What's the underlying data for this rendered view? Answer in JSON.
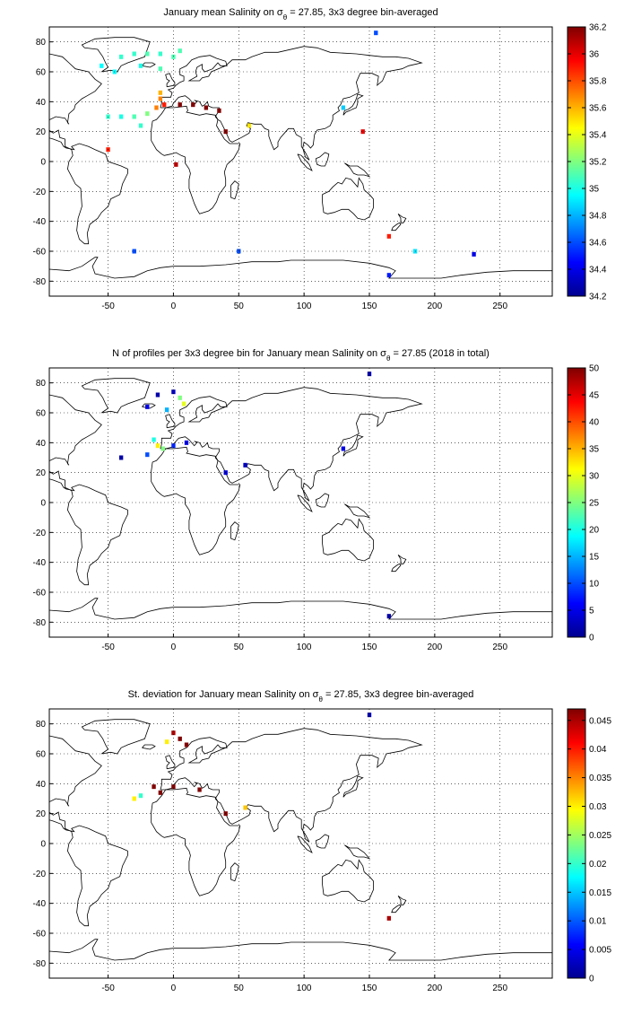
{
  "chart_data": [
    {
      "type": "heatmap",
      "title": "January mean Salinity on σθ = 27.85, 3x3 degree bin-averaged",
      "title_parts": {
        "prefix": "January mean Salinity on σ",
        "subscript": "θ",
        "suffix": " = 27.85, 3x3 degree bin-averaged"
      },
      "xlabel": "",
      "ylabel": "",
      "xlim": [
        -95,
        290
      ],
      "ylim": [
        -90,
        90
      ],
      "xticks": [
        -50,
        0,
        50,
        100,
        150,
        200,
        250
      ],
      "yticks": [
        80,
        60,
        40,
        20,
        0,
        -20,
        -40,
        -60,
        -80
      ],
      "grid": true,
      "colorbar": {
        "min": 34.2,
        "max": 36.2,
        "ticks": [
          36.2,
          36,
          35.8,
          35.6,
          35.4,
          35.2,
          35,
          34.8,
          34.6,
          34.4,
          34.2
        ]
      },
      "cells": [
        {
          "lon": -40,
          "lat": 70,
          "value": 35.05
        },
        {
          "lon": -30,
          "lat": 72,
          "value": 35.05
        },
        {
          "lon": -20,
          "lat": 72,
          "value": 35.1
        },
        {
          "lon": -10,
          "lat": 72,
          "value": 35.05
        },
        {
          "lon": 0,
          "lat": 70,
          "value": 35.1
        },
        {
          "lon": 5,
          "lat": 74,
          "value": 35.1
        },
        {
          "lon": -55,
          "lat": 64,
          "value": 34.95
        },
        {
          "lon": -25,
          "lat": 64,
          "value": 35.0
        },
        {
          "lon": -10,
          "lat": 62,
          "value": 35.1
        },
        {
          "lon": -45,
          "lat": 60,
          "value": 34.95
        },
        {
          "lon": -10,
          "lat": 46,
          "value": 35.6
        },
        {
          "lon": -10,
          "lat": 42,
          "value": 35.7
        },
        {
          "lon": -7,
          "lat": 38,
          "value": 35.9
        },
        {
          "lon": -13,
          "lat": 36,
          "value": 35.7
        },
        {
          "lon": -20,
          "lat": 32,
          "value": 35.2
        },
        {
          "lon": -30,
          "lat": 30,
          "value": 35.1
        },
        {
          "lon": -40,
          "lat": 30,
          "value": 35.0
        },
        {
          "lon": -50,
          "lat": 30,
          "value": 35.05
        },
        {
          "lon": -25,
          "lat": 24,
          "value": 35.05
        },
        {
          "lon": 5,
          "lat": 38,
          "value": 36.2
        },
        {
          "lon": 15,
          "lat": 38,
          "value": 36.2
        },
        {
          "lon": 25,
          "lat": 36,
          "value": 36.2
        },
        {
          "lon": 35,
          "lat": 34,
          "value": 36.2
        },
        {
          "lon": 40,
          "lat": 20,
          "value": 36.2
        },
        {
          "lon": 58,
          "lat": 24,
          "value": 35.5
        },
        {
          "lon": -50,
          "lat": 8,
          "value": 35.9
        },
        {
          "lon": 2,
          "lat": -2,
          "value": 36.1
        },
        {
          "lon": 130,
          "lat": 36,
          "value": 34.85
        },
        {
          "lon": 145,
          "lat": 20,
          "value": 36.0
        },
        {
          "lon": 165,
          "lat": -50,
          "value": 35.9
        },
        {
          "lon": 155,
          "lat": 86,
          "value": 34.6
        },
        {
          "lon": -30,
          "lat": -60,
          "value": 34.6
        },
        {
          "lon": 50,
          "lat": -60,
          "value": 34.6
        },
        {
          "lon": 165,
          "lat": -76,
          "value": 34.5
        },
        {
          "lon": 185,
          "lat": -60,
          "value": 34.9
        },
        {
          "lon": 230,
          "lat": -62,
          "value": 34.4
        }
      ]
    },
    {
      "type": "heatmap",
      "title": "N of profiles per 3x3 degree bin for January mean Salinity on σθ = 27.85 (2018 in total)",
      "title_parts": {
        "prefix": "N of profiles per 3x3 degree bin for January mean Salinity on σ",
        "subscript": "θ",
        "suffix": " = 27.85 (2018 in total)"
      },
      "xlabel": "",
      "ylabel": "",
      "xlim": [
        -95,
        290
      ],
      "ylim": [
        -90,
        90
      ],
      "xticks": [
        -50,
        0,
        50,
        100,
        150,
        200,
        250
      ],
      "yticks": [
        80,
        60,
        40,
        20,
        0,
        -20,
        -40,
        -60,
        -80
      ],
      "grid": true,
      "colorbar": {
        "min": 0,
        "max": 50,
        "ticks": [
          50,
          45,
          40,
          35,
          30,
          25,
          20,
          15,
          10,
          5,
          0
        ]
      },
      "cells": [
        {
          "lon": -12,
          "lat": 72,
          "value": 2
        },
        {
          "lon": 0,
          "lat": 74,
          "value": 3
        },
        {
          "lon": 5,
          "lat": 70,
          "value": 25
        },
        {
          "lon": 8,
          "lat": 66,
          "value": 30
        },
        {
          "lon": -5,
          "lat": 62,
          "value": 15
        },
        {
          "lon": -20,
          "lat": 64,
          "value": 5
        },
        {
          "lon": -15,
          "lat": 42,
          "value": 20
        },
        {
          "lon": -12,
          "lat": 38,
          "value": 32
        },
        {
          "lon": -8,
          "lat": 36,
          "value": 25
        },
        {
          "lon": -20,
          "lat": 32,
          "value": 10
        },
        {
          "lon": -40,
          "lat": 30,
          "value": 2
        },
        {
          "lon": 0,
          "lat": 38,
          "value": 8
        },
        {
          "lon": 10,
          "lat": 40,
          "value": 5
        },
        {
          "lon": 40,
          "lat": 20,
          "value": 4
        },
        {
          "lon": 55,
          "lat": 25,
          "value": 3
        },
        {
          "lon": 130,
          "lat": 36,
          "value": 5
        },
        {
          "lon": 150,
          "lat": 86,
          "value": 2
        },
        {
          "lon": 165,
          "lat": -76,
          "value": 2
        }
      ]
    },
    {
      "type": "heatmap",
      "title": "St. deviation for January mean Salinity on σθ = 27.85, 3x3 degree bin-averaged",
      "title_parts": {
        "prefix": "St. deviation for January mean Salinity on σ",
        "subscript": "θ",
        "suffix": " = 27.85, 3x3 degree bin-averaged"
      },
      "xlabel": "",
      "ylabel": "",
      "xlim": [
        -95,
        290
      ],
      "ylim": [
        -90,
        90
      ],
      "xticks": [
        -50,
        0,
        50,
        100,
        150,
        200,
        250
      ],
      "yticks": [
        80,
        60,
        40,
        20,
        0,
        -20,
        -40,
        -60,
        -80
      ],
      "grid": true,
      "colorbar": {
        "min": 0,
        "max": 0.047,
        "ticks": [
          0.045,
          0.04,
          0.035,
          0.03,
          0.025,
          0.02,
          0.015,
          0.01,
          0.005,
          0
        ]
      },
      "cells": [
        {
          "lon": 0,
          "lat": 74,
          "value": 0.045
        },
        {
          "lon": 5,
          "lat": 70,
          "value": 0.047
        },
        {
          "lon": -5,
          "lat": 68,
          "value": 0.03
        },
        {
          "lon": 10,
          "lat": 66,
          "value": 0.047
        },
        {
          "lon": -15,
          "lat": 38,
          "value": 0.047
        },
        {
          "lon": -10,
          "lat": 34,
          "value": 0.047
        },
        {
          "lon": -25,
          "lat": 32,
          "value": 0.02
        },
        {
          "lon": -30,
          "lat": 30,
          "value": 0.03
        },
        {
          "lon": 0,
          "lat": 38,
          "value": 0.047
        },
        {
          "lon": 20,
          "lat": 36,
          "value": 0.047
        },
        {
          "lon": 40,
          "lat": 20,
          "value": 0.047
        },
        {
          "lon": 55,
          "lat": 24,
          "value": 0.032
        },
        {
          "lon": 165,
          "lat": -50,
          "value": 0.045
        },
        {
          "lon": 150,
          "lat": 86,
          "value": 0.002
        }
      ]
    }
  ]
}
